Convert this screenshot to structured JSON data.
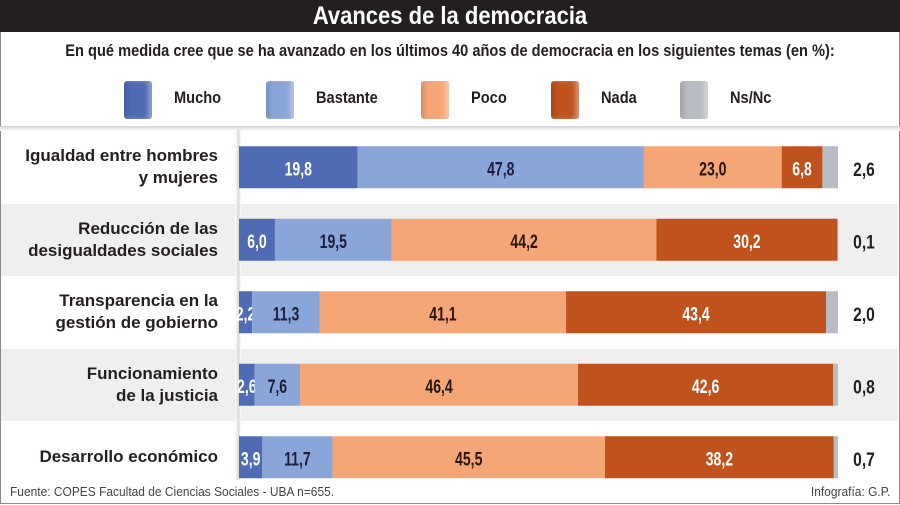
{
  "header": {
    "title": "Avances de la democracia",
    "subtitle": "En qué medida cree que se ha avanzado en los últimos 40 años de democracia en los siguientes temas (en %):"
  },
  "footer": {
    "source": "Fuente: COPES Facultad de Ciencias Sociales - UBA n=655.",
    "credit": "Infografía: G.P."
  },
  "chart_data": {
    "type": "bar",
    "orientation": "horizontal",
    "stacked": true,
    "title": "Avances de la democracia",
    "subtitle": "En qué medida cree que se ha avanzado en los últimos 40 años de democracia en los siguientes temas (en %):",
    "xlabel": "",
    "ylabel": "",
    "xlim": [
      0,
      100
    ],
    "grid": false,
    "legend_position": "top",
    "categories": [
      [
        "Igualdad entre hombres",
        "y mujeres"
      ],
      [
        "Reducción de las",
        "desigualdades sociales"
      ],
      [
        "Transparencia en la",
        "gestión de gobierno"
      ],
      [
        "Funcionamiento",
        "de la justicia"
      ],
      [
        "Desarrollo económico"
      ]
    ],
    "series": [
      {
        "name": "Mucho",
        "color": "#4f6bb4",
        "label_color": "#ffffff",
        "values": [
          19.8,
          6.0,
          2.2,
          2.6,
          3.9
        ],
        "labels": [
          "19,8",
          "6,0",
          "2,2",
          "2,6",
          "3,9"
        ]
      },
      {
        "name": "Bastante",
        "color": "#8aa6d9",
        "label_color": "#1b1f3b",
        "values": [
          47.8,
          19.5,
          11.3,
          7.6,
          11.7
        ],
        "labels": [
          "47,8",
          "19,5",
          "11,3",
          "7,6",
          "11,7"
        ]
      },
      {
        "name": "Poco",
        "color": "#f5a676",
        "label_color": "#2a1608",
        "values": [
          23.0,
          44.2,
          41.1,
          46.4,
          45.5
        ],
        "labels": [
          "23,0",
          "44,2",
          "41,1",
          "46,4",
          "45,5"
        ]
      },
      {
        "name": "Nada",
        "color": "#c0521d",
        "label_color": "#ffffff",
        "values": [
          6.8,
          30.2,
          43.4,
          42.6,
          38.2
        ],
        "labels": [
          "6,8",
          "30,2",
          "43,4",
          "42,6",
          "38,2"
        ]
      },
      {
        "name": "Ns/Nc",
        "color": "#b9bcc2",
        "label_color": "#231f20",
        "values": [
          2.6,
          0.1,
          2.0,
          0.8,
          0.7
        ],
        "labels": [
          "2,6",
          "0,1",
          "2,0",
          "0,8",
          "0,7"
        ],
        "label_outside": true
      }
    ]
  }
}
